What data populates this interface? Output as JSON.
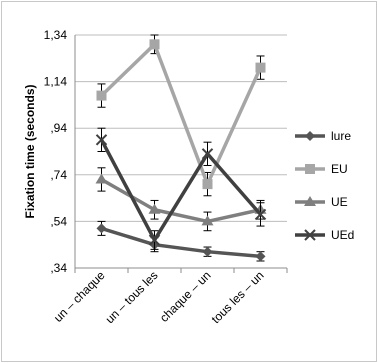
{
  "chart_data": {
    "type": "line",
    "title": "",
    "xlabel": "",
    "ylabel": "Fixation time (seconds)",
    "categories": [
      "un – chaque",
      "un – tous les",
      "chaque – un",
      "tous les – un"
    ],
    "y_ticks": [
      ",34",
      ",54",
      ",74",
      ",94",
      "1,14",
      "1,34"
    ],
    "ylim": [
      0.34,
      1.34
    ],
    "grid": true,
    "legend_position": "right",
    "error_bars": true,
    "series": [
      {
        "name": "lure",
        "color": "#555555",
        "marker": "diamond",
        "values": [
          0.51,
          0.44,
          0.41,
          0.39
        ],
        "errors": [
          0.03,
          0.03,
          0.02,
          0.02
        ]
      },
      {
        "name": "EU",
        "color": "#a6a6a6",
        "marker": "square",
        "values": [
          1.08,
          1.3,
          0.7,
          1.2
        ],
        "errors": [
          0.05,
          0.04,
          0.05,
          0.05
        ]
      },
      {
        "name": "UE",
        "color": "#7f7f7f",
        "marker": "triangle",
        "values": [
          0.72,
          0.59,
          0.54,
          0.59
        ],
        "errors": [
          0.05,
          0.04,
          0.04,
          0.04
        ]
      },
      {
        "name": "UEd",
        "color": "#404040",
        "marker": "x",
        "values": [
          0.89,
          0.46,
          0.83,
          0.57
        ],
        "errors": [
          0.05,
          0.04,
          0.05,
          0.05
        ]
      }
    ]
  }
}
